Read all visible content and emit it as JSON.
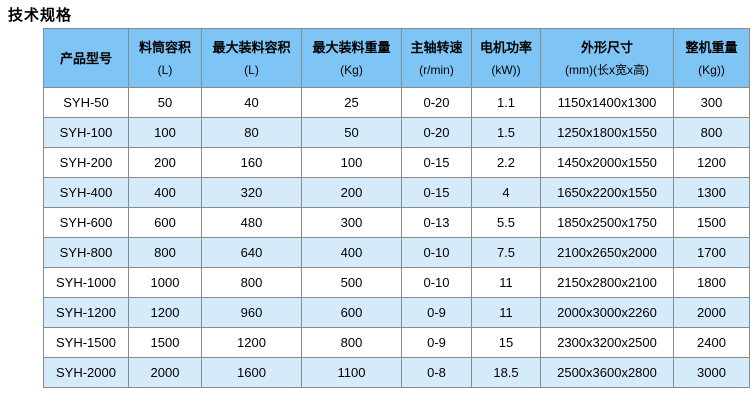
{
  "page": {
    "title": "技术规格"
  },
  "colors": {
    "header_bg": "#7EC5F5",
    "row_alt_bg": "#D6EBFA",
    "row_bg": "#FFFFFF",
    "border": "#8A8A8A",
    "text": "#000000"
  },
  "table": {
    "columns": [
      {
        "name": "产品型号",
        "unit": ""
      },
      {
        "name": "料筒容积",
        "unit": "(L)"
      },
      {
        "name": "最大装料容积",
        "unit": "(L)"
      },
      {
        "name": "最大装料重量",
        "unit": "(Kg)"
      },
      {
        "name": "主轴转速",
        "unit": "(r/min)"
      },
      {
        "name": "电机功率",
        "unit": "(kW))"
      },
      {
        "name": "外形尺寸",
        "unit": "(mm)(长x宽x高)"
      },
      {
        "name": "整机重量",
        "unit": "(Kg))"
      }
    ],
    "rows": [
      [
        "SYH-50",
        "50",
        "40",
        "25",
        "0-20",
        "1.1",
        "1150x1400x1300",
        "300"
      ],
      [
        "SYH-100",
        "100",
        "80",
        "50",
        "0-20",
        "1.5",
        "1250x1800x1550",
        "800"
      ],
      [
        "SYH-200",
        "200",
        "160",
        "100",
        "0-15",
        "2.2",
        "1450x2000x1550",
        "1200"
      ],
      [
        "SYH-400",
        "400",
        "320",
        "200",
        "0-15",
        "4",
        "1650x2200x1550",
        "1300"
      ],
      [
        "SYH-600",
        "600",
        "480",
        "300",
        "0-13",
        "5.5",
        "1850x2500x1750",
        "1500"
      ],
      [
        "SYH-800",
        "800",
        "640",
        "400",
        "0-10",
        "7.5",
        "2100x2650x2000",
        "1700"
      ],
      [
        "SYH-1000",
        "1000",
        "800",
        "500",
        "0-10",
        "11",
        "2150x2800x2100",
        "1800"
      ],
      [
        "SYH-1200",
        "1200",
        "960",
        "600",
        "0-9",
        "11",
        "2000x3000x2260",
        "2000"
      ],
      [
        "SYH-1500",
        "1500",
        "1200",
        "800",
        "0-9",
        "15",
        "2300x3200x2500",
        "2400"
      ],
      [
        "SYH-2000",
        "2000",
        "1600",
        "1100",
        "0-8",
        "18.5",
        "2500x3600x2800",
        "3000"
      ]
    ]
  }
}
